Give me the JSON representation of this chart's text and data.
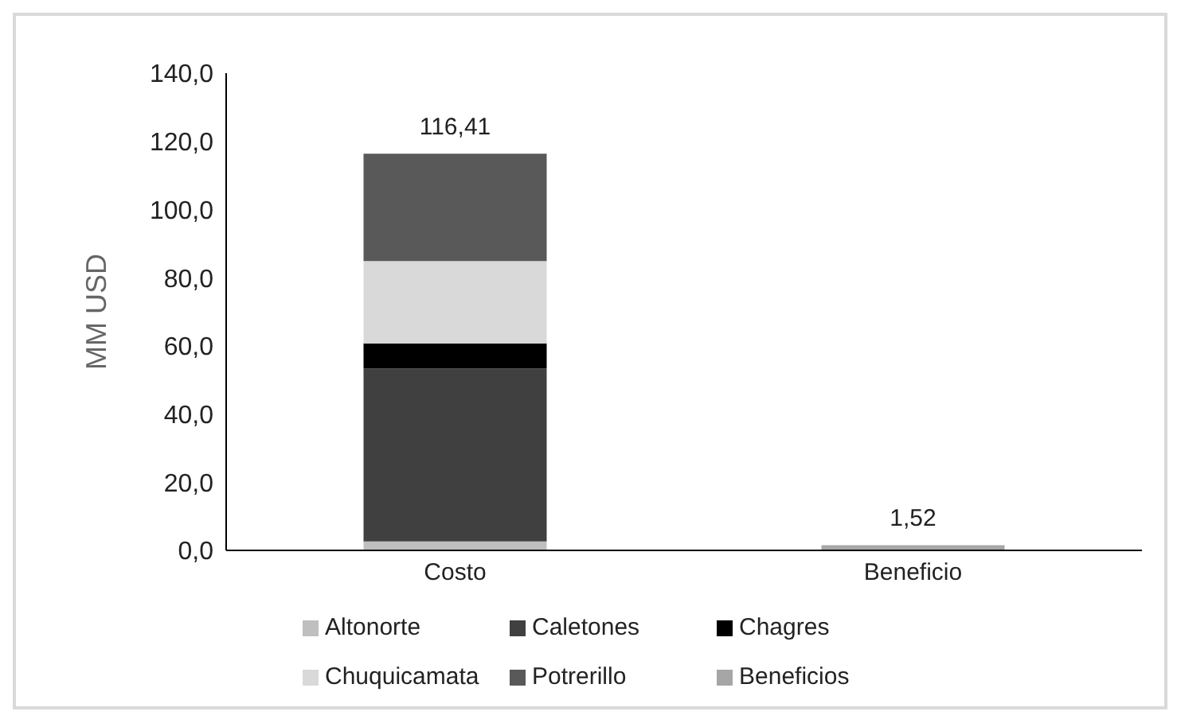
{
  "chart_data": {
    "type": "bar",
    "stacked": true,
    "ylabel": "MM USD",
    "categories": [
      "Costo",
      "Beneficio"
    ],
    "series": [
      {
        "name": "Altonorte",
        "color": "#bfbfbf",
        "values": [
          2.6,
          null
        ]
      },
      {
        "name": "Caletones",
        "color": "#404040",
        "values": [
          50.8,
          null
        ]
      },
      {
        "name": "Chagres",
        "color": "#000000",
        "values": [
          7.3,
          null
        ]
      },
      {
        "name": "Chuquicamata",
        "color": "#d9d9d9",
        "values": [
          24.2,
          null
        ]
      },
      {
        "name": "Potrerillo",
        "color": "#595959",
        "values": [
          31.5,
          null
        ]
      },
      {
        "name": "Beneficios",
        "color": "#a6a6a6",
        "values": [
          null,
          1.52
        ]
      }
    ],
    "totals": [
      "116,41",
      "1,52"
    ],
    "ylim": [
      0,
      140
    ],
    "yticks": [
      {
        "value": 0,
        "label": "0,0"
      },
      {
        "value": 20,
        "label": "20,0"
      },
      {
        "value": 40,
        "label": "40,0"
      },
      {
        "value": 60,
        "label": "60,0"
      },
      {
        "value": 80,
        "label": "80,0"
      },
      {
        "value": 100,
        "label": "100,0"
      },
      {
        "value": 120,
        "label": "120,0"
      },
      {
        "value": 140,
        "label": "140,0"
      }
    ],
    "grid": false,
    "legend": "bottom"
  }
}
